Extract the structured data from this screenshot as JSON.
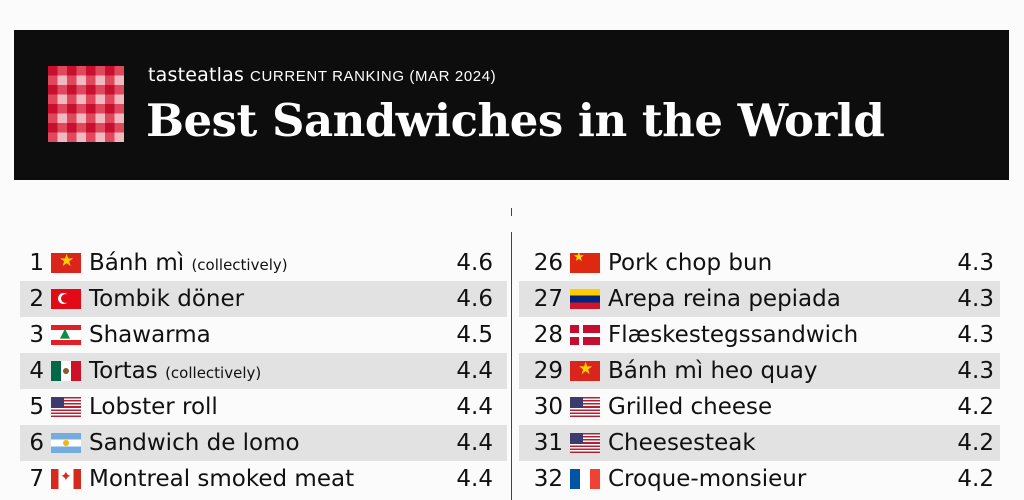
{
  "header": {
    "brand": "tasteatlas",
    "subtitle": "CURRENT RANKING (MAR 2024)",
    "title": "Best Sandwiches in the World",
    "logo_icon": "checkered-tablecloth-icon",
    "colors": {
      "banner": "#0d0d0d",
      "logo_red": "#c8102e",
      "logo_pink": "#f2b8c0"
    }
  },
  "rankings_left": [
    {
      "rank": "1",
      "flag": "vietnam-flag-icon",
      "flag_class": "f-vn",
      "name": "Bánh mì",
      "note": "(collectively)",
      "score": "4.6"
    },
    {
      "rank": "2",
      "flag": "turkey-flag-icon",
      "flag_class": "f-tr",
      "name": "Tombik döner",
      "note": "",
      "score": "4.6"
    },
    {
      "rank": "3",
      "flag": "lebanon-flag-icon",
      "flag_class": "f-lb",
      "name": "Shawarma",
      "note": "",
      "score": "4.5"
    },
    {
      "rank": "4",
      "flag": "mexico-flag-icon",
      "flag_class": "f-mx",
      "name": "Tortas",
      "note": "(collectively)",
      "score": "4.4"
    },
    {
      "rank": "5",
      "flag": "usa-flag-icon",
      "flag_class": "f-us",
      "name": "Lobster roll",
      "note": "",
      "score": "4.4"
    },
    {
      "rank": "6",
      "flag": "argentina-flag-icon",
      "flag_class": "f-ar",
      "name": "Sandwich de lomo",
      "note": "",
      "score": "4.4"
    },
    {
      "rank": "7",
      "flag": "canada-flag-icon",
      "flag_class": "f-ca",
      "name": "Montreal smoked meat",
      "note": "",
      "score": "4.4"
    }
  ],
  "rankings_right": [
    {
      "rank": "26",
      "flag": "china-flag-icon",
      "flag_class": "f-cn",
      "name": "Pork chop bun",
      "note": "",
      "score": "4.3"
    },
    {
      "rank": "27",
      "flag": "venezuela-flag-icon",
      "flag_class": "f-ve",
      "name": "Arepa reina pepiada",
      "note": "",
      "score": "4.3"
    },
    {
      "rank": "28",
      "flag": "denmark-flag-icon",
      "flag_class": "f-dk",
      "name": "Flæskestegssandwich",
      "note": "",
      "score": "4.3"
    },
    {
      "rank": "29",
      "flag": "vietnam-flag-icon",
      "flag_class": "f-vn",
      "name": "Bánh mì heo quay",
      "note": "",
      "score": "4.3"
    },
    {
      "rank": "30",
      "flag": "usa-flag-icon",
      "flag_class": "f-us",
      "name": "Grilled cheese",
      "note": "",
      "score": "4.2"
    },
    {
      "rank": "31",
      "flag": "usa-flag-icon",
      "flag_class": "f-us",
      "name": "Cheesesteak",
      "note": "",
      "score": "4.2"
    },
    {
      "rank": "32",
      "flag": "france-flag-icon",
      "flag_class": "f-fr",
      "name": "Croque-monsieur",
      "note": "",
      "score": "4.2"
    }
  ]
}
